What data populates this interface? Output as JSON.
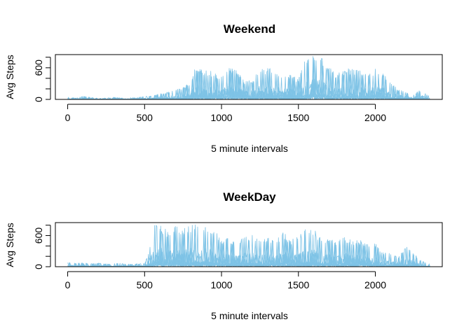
{
  "chart_data": [
    {
      "type": "line",
      "title": "Weekend",
      "xlabel": "5 minute intervals",
      "ylabel": "Avg Steps",
      "xlim": [
        -80,
        2435
      ],
      "ylim": [
        0,
        850
      ],
      "xticks": [
        0,
        500,
        1000,
        1500,
        2000
      ],
      "yticks": [
        0,
        200,
        400,
        600,
        800
      ],
      "ytick_labels": [
        "0",
        "",
        "",
        "600",
        ""
      ],
      "line_color": "#7EC3E6",
      "grid": false,
      "legend": "none",
      "x": [
        0,
        50,
        100,
        150,
        200,
        250,
        300,
        350,
        400,
        450,
        500,
        550,
        600,
        650,
        700,
        750,
        800,
        820,
        850,
        900,
        950,
        1000,
        1050,
        1100,
        1150,
        1200,
        1250,
        1300,
        1350,
        1400,
        1450,
        1500,
        1550,
        1600,
        1650,
        1700,
        1750,
        1800,
        1850,
        1900,
        1950,
        2000,
        2050,
        2100,
        2150,
        2200,
        2250,
        2300,
        2355
      ],
      "envelope": [
        50,
        30,
        60,
        40,
        20,
        30,
        45,
        30,
        40,
        35,
        60,
        80,
        110,
        140,
        180,
        230,
        350,
        560,
        580,
        560,
        520,
        430,
        590,
        560,
        350,
        380,
        580,
        600,
        560,
        450,
        480,
        380,
        820,
        860,
        820,
        620,
        480,
        580,
        590,
        560,
        480,
        580,
        520,
        300,
        200,
        140,
        100,
        200,
        50
      ]
    },
    {
      "type": "line",
      "title": "WeekDay",
      "xlabel": "5 minute intervals",
      "ylabel": "Avg Steps",
      "xlim": [
        -80,
        2435
      ],
      "ylim": [
        0,
        850
      ],
      "xticks": [
        0,
        500,
        1000,
        1500,
        2000
      ],
      "yticks": [
        0,
        200,
        400,
        600,
        800
      ],
      "ytick_labels": [
        "0",
        "",
        "",
        "600",
        ""
      ],
      "line_color": "#7EC3E6",
      "grid": false,
      "legend": "none",
      "x": [
        0,
        50,
        100,
        150,
        200,
        250,
        300,
        350,
        400,
        450,
        500,
        530,
        560,
        600,
        650,
        700,
        750,
        800,
        850,
        900,
        950,
        1000,
        1050,
        1100,
        1150,
        1200,
        1250,
        1300,
        1350,
        1400,
        1450,
        1500,
        1550,
        1600,
        1650,
        1700,
        1750,
        1800,
        1850,
        1900,
        1950,
        2000,
        2050,
        2100,
        2150,
        2200,
        2250,
        2300,
        2355
      ],
      "envelope": [
        80,
        70,
        75,
        60,
        70,
        55,
        60,
        70,
        50,
        60,
        70,
        300,
        800,
        820,
        700,
        780,
        720,
        820,
        830,
        800,
        780,
        520,
        560,
        480,
        580,
        620,
        520,
        560,
        480,
        680,
        520,
        580,
        780,
        760,
        520,
        560,
        480,
        580,
        500,
        520,
        480,
        450,
        300,
        250,
        180,
        420,
        250,
        120,
        60
      ]
    }
  ]
}
